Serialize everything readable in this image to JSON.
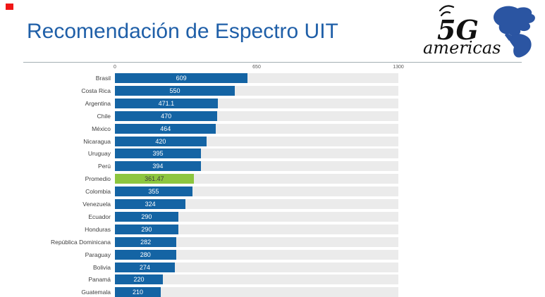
{
  "page": {
    "title": "Recomendación de Espectro UIT",
    "title_color": "#1f5fa8",
    "red_marker_color": "#f01616"
  },
  "logo": {
    "name": "5G Americas logo",
    "text_5g": "5G",
    "text_americas": "americas",
    "ink_color": "#101010",
    "map_color": "#2b55a2"
  },
  "chart_data": {
    "type": "bar",
    "orientation": "horizontal",
    "title": "Recomendación de Espectro UIT",
    "xlabel": "",
    "ylabel": "",
    "xlim": [
      0,
      1300
    ],
    "x_ticks": [
      0,
      650,
      1300
    ],
    "x_tick_labels": [
      "0",
      "650",
      "1300"
    ],
    "grid": "vertical-at-ticks",
    "legend": "none",
    "categories": [
      "Brasil",
      "Costa Rica",
      "Argentina",
      "Chile",
      "México",
      "Nicaragua",
      "Uruguay",
      "Perú",
      "Promedio",
      "Colombia",
      "Venezuela",
      "Ecuador",
      "Honduras",
      "República Dominicana",
      "Paraguay",
      "Bolivia",
      "Panamá",
      "Guatemala"
    ],
    "values": [
      609,
      550,
      471.1,
      470,
      464,
      420,
      395,
      394,
      361.47,
      355,
      324,
      290,
      290,
      282,
      280,
      274,
      220,
      210
    ],
    "value_labels": [
      "609",
      "550",
      "471.1",
      "470",
      "464",
      "420",
      "395",
      "394",
      "361.47",
      "355",
      "324",
      "290",
      "290",
      "282",
      "280",
      "274",
      "220",
      "210"
    ],
    "bar_color": "#1464a4",
    "highlight_index": 8,
    "highlight_color": "#8dc63f",
    "row_bg_color": "#ebebeb"
  }
}
